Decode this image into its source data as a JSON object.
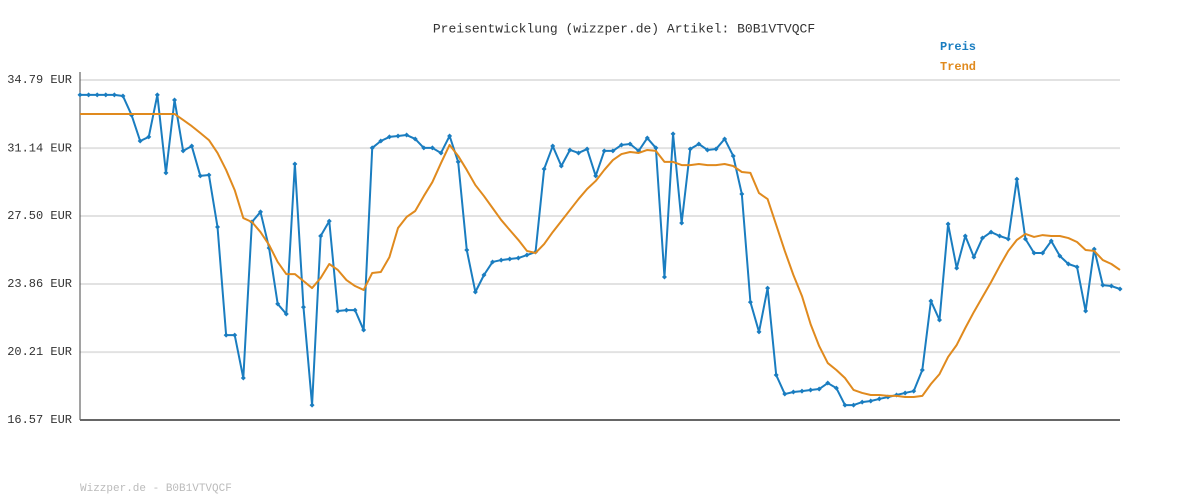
{
  "chart_data": {
    "type": "line",
    "title": "Preisentwicklung (wizzper.de) Artikel: B0B1VTVQCF",
    "footer": "Wizzper.de - B0B1VTVQCF",
    "legend": "top-right",
    "grid": true,
    "categories": [
      null,
      null,
      null,
      null,
      null,
      null,
      null,
      null,
      null,
      null,
      null,
      null,
      null,
      null,
      null,
      null,
      null,
      null,
      null,
      null,
      null,
      null,
      null,
      null,
      null,
      null,
      null,
      null,
      null,
      null,
      null,
      null,
      null,
      null,
      null,
      null,
      null,
      null,
      null,
      null,
      null,
      null,
      null,
      null,
      null,
      null,
      null,
      null,
      null,
      null,
      null,
      null,
      null,
      null,
      null,
      null,
      null,
      null,
      null,
      null,
      null,
      null,
      null,
      null,
      null,
      null,
      null,
      null,
      null,
      null,
      null,
      null,
      null,
      null,
      null,
      null,
      null,
      null,
      null,
      null,
      null,
      null,
      null,
      null,
      null,
      null,
      null,
      null,
      null,
      null,
      null,
      null,
      null,
      null,
      null,
      null,
      null,
      null,
      null,
      null,
      null,
      null,
      null,
      null,
      null,
      null,
      null,
      null,
      null,
      null,
      null,
      null,
      null,
      null,
      null,
      null,
      null,
      null,
      null,
      null,
      null,
      null
    ],
    "ylim": [
      16.57,
      34.79
    ],
    "yticks": [
      {
        "value": 16.57,
        "label": "16.57 EUR"
      },
      {
        "value": 20.21,
        "label": "20.21 EUR"
      },
      {
        "value": 23.86,
        "label": "23.86 EUR"
      },
      {
        "value": 27.5,
        "label": "27.50 EUR"
      },
      {
        "value": 31.14,
        "label": "31.14 EUR"
      },
      {
        "value": 34.79,
        "label": "34.79 EUR"
      }
    ],
    "series": [
      {
        "name": "Preis",
        "color": "#1a7dc0",
        "markers": true,
        "values": [
          33.99,
          33.99,
          33.99,
          33.99,
          33.99,
          33.93,
          32.91,
          31.52,
          31.74,
          33.99,
          29.81,
          33.72,
          30.99,
          31.25,
          29.65,
          29.7,
          26.91,
          21.12,
          21.12,
          18.82,
          27.18,
          27.72,
          25.79,
          22.79,
          22.25,
          30.29,
          22.62,
          17.37,
          26.43,
          27.23,
          22.41,
          22.46,
          22.46,
          21.39,
          31.15,
          31.52,
          31.74,
          31.79,
          31.84,
          31.63,
          31.15,
          31.15,
          30.88,
          31.79,
          30.4,
          25.68,
          23.43,
          24.34,
          25.04,
          25.14,
          25.2,
          25.25,
          25.41,
          25.57,
          30.02,
          31.25,
          30.18,
          31.04,
          30.88,
          31.09,
          29.65,
          30.99,
          30.99,
          31.31,
          31.36,
          30.99,
          31.68,
          31.15,
          24.23,
          31.9,
          27.13,
          31.09,
          31.36,
          31.04,
          31.09,
          31.63,
          30.72,
          28.68,
          22.89,
          21.29,
          23.64,
          18.98,
          17.96,
          18.07,
          18.12,
          18.18,
          18.23,
          18.55,
          18.28,
          17.37,
          17.37,
          17.53,
          17.59,
          17.7,
          17.8,
          17.91,
          18.02,
          18.12,
          19.25,
          22.95,
          21.93,
          27.07,
          24.71,
          26.43,
          25.3,
          26.32,
          26.64,
          26.43,
          26.27,
          29.48,
          26.27,
          25.52,
          25.52,
          26.16,
          25.36,
          24.93,
          24.77,
          22.41,
          25.73,
          23.8,
          23.75,
          23.59
        ]
      },
      {
        "name": "Trend",
        "color": "#e08a1e",
        "markers": false,
        "values": [
          32.97,
          32.97,
          32.97,
          32.97,
          32.97,
          32.97,
          32.97,
          32.97,
          32.97,
          32.97,
          32.97,
          32.97,
          32.65,
          32.32,
          31.95,
          31.57,
          30.88,
          29.97,
          28.89,
          27.39,
          27.18,
          26.64,
          25.95,
          25.04,
          24.39,
          24.39,
          24.02,
          23.64,
          24.18,
          24.93,
          24.61,
          24.07,
          23.75,
          23.54,
          24.45,
          24.5,
          25.3,
          26.86,
          27.45,
          27.77,
          28.57,
          29.32,
          30.34,
          31.31,
          30.72,
          29.97,
          29.16,
          28.57,
          27.93,
          27.29,
          26.75,
          26.22,
          25.63,
          25.52,
          26.0,
          26.64,
          27.23,
          27.82,
          28.41,
          28.95,
          29.38,
          29.97,
          30.5,
          30.82,
          30.93,
          30.88,
          31.04,
          30.99,
          30.4,
          30.4,
          30.23,
          30.23,
          30.29,
          30.23,
          30.23,
          30.29,
          30.18,
          29.86,
          29.81,
          28.73,
          28.41,
          27.02,
          25.63,
          24.34,
          23.21,
          21.71,
          20.53,
          19.62,
          19.25,
          18.82,
          18.18,
          18.02,
          17.91,
          17.91,
          17.86,
          17.86,
          17.8,
          17.8,
          17.86,
          18.5,
          19.03,
          19.95,
          20.59,
          21.5,
          22.36,
          23.16,
          23.96,
          24.82,
          25.63,
          26.22,
          26.54,
          26.38,
          26.48,
          26.43,
          26.43,
          26.32,
          26.11,
          25.68,
          25.63,
          25.14,
          24.93,
          24.61
        ]
      }
    ]
  }
}
